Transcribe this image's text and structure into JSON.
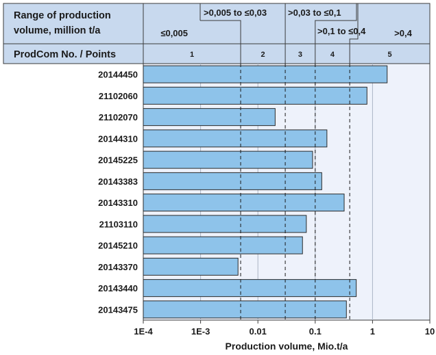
{
  "chart_data": {
    "type": "bar",
    "orientation": "horizontal",
    "xscale": "log",
    "xlim": [
      "1E-4",
      "10"
    ],
    "x_ticks": [
      "1E-4",
      "1E-3",
      "0.01",
      "0.1",
      "1",
      "10"
    ],
    "xlabel": "Production volume, Mio.t/a",
    "categories": [
      "20144450",
      "21102060",
      "21102070",
      "20144310",
      "20145225",
      "20143383",
      "20143310",
      "21103110",
      "20145210",
      "20143370",
      "20143440",
      "20143475"
    ],
    "values": [
      1.8,
      0.8,
      0.02,
      0.16,
      0.09,
      0.13,
      0.32,
      0.07,
      0.06,
      0.0045,
      0.52,
      0.35
    ],
    "bar_color": "#8ec3ea",
    "header": {
      "range_title_line1": "Range of production",
      "range_title_line2": "volume, million t/a",
      "class_title": "ProdCom No. / Points",
      "ranges": [
        {
          "label": "≤0,005",
          "min": null,
          "max": 0.005,
          "class": "1"
        },
        {
          "label": ">0,005 to ≤0,03",
          "min": 0.005,
          "max": 0.03,
          "class": "2"
        },
        {
          "label": ">0,03 to ≤0,1",
          "min": 0.03,
          "max": 0.1,
          "class": "3"
        },
        {
          "label": ">0,1 to ≤0,4",
          "min": 0.1,
          "max": 0.4,
          "class": "4"
        },
        {
          "label": ">0,4",
          "min": 0.4,
          "max": null,
          "class": "5"
        }
      ]
    },
    "colors": {
      "header_fill": "#c8d9ee",
      "plot_fill": "#eef2fb",
      "bar_stroke": "#2a2a2a"
    },
    "grid": "vertical at decades",
    "boundary_lines": "dashed at class boundaries"
  }
}
